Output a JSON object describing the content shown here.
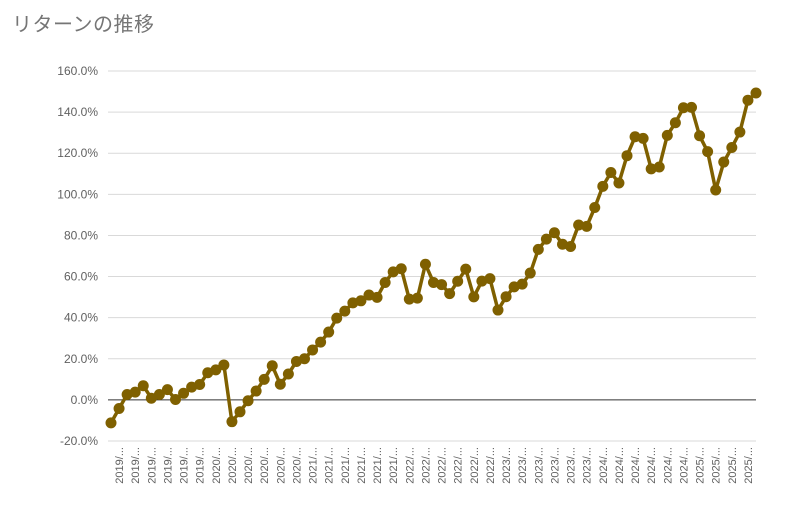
{
  "chart_data": {
    "type": "line",
    "title": "リターンの推移",
    "xlabel": "",
    "ylabel": "",
    "ylim": [
      -20,
      160
    ],
    "y_ticks": [
      "160.0%",
      "140.0%",
      "120.0%",
      "100.0%",
      "80.0%",
      "60.0%",
      "40.0%",
      "20.0%",
      "0.0%",
      "-20.0%"
    ],
    "x_tick_labels": [
      "2019/...",
      "2019/...",
      "2019/...",
      "2019/...",
      "2019/...",
      "2019/...",
      "2020/...",
      "2020/...",
      "2020/...",
      "2020/...",
      "2020/...",
      "2020/...",
      "2021/...",
      "2021/...",
      "2021/...",
      "2021/...",
      "2021/...",
      "2021/...",
      "2022/...",
      "2022/...",
      "2022/...",
      "2022/...",
      "2022/...",
      "2022/...",
      "2023/...",
      "2023/...",
      "2023/...",
      "2023/...",
      "2023/...",
      "2023/...",
      "2024/...",
      "2024/...",
      "2024/...",
      "2024/...",
      "2024/...",
      "2024/...",
      "2025/...",
      "2025/...",
      "2025/...",
      "2025/..."
    ],
    "grid": true,
    "legend": "none",
    "series": [
      {
        "color": "#7f6000",
        "values": [
          -11.2,
          -4.2,
          2.6,
          3.8,
          6.9,
          0.8,
          2.6,
          5.0,
          0.2,
          3.2,
          6.2,
          7.5,
          13.2,
          14.6,
          17.0,
          -10.6,
          -5.8,
          -0.4,
          4.3,
          10.0,
          16.6,
          7.6,
          12.6,
          18.7,
          20.0,
          24.3,
          28.1,
          33.0,
          39.8,
          43.2,
          47.2,
          48.2,
          51.0,
          49.9,
          57.1,
          62.3,
          63.8,
          49.0,
          49.5,
          66.0,
          57.1,
          56.1,
          51.7,
          57.7,
          63.6,
          50.1,
          57.8,
          59.0,
          43.7,
          50.2,
          55.0,
          56.3,
          61.7,
          73.2,
          78.2,
          81.3,
          75.7,
          74.6,
          85.1,
          84.4,
          93.6,
          103.9,
          110.6,
          105.5,
          118.8,
          128.0,
          127.2,
          112.4,
          113.3,
          128.7,
          134.8,
          142.1,
          142.3,
          128.5,
          120.8,
          102.1,
          115.7,
          122.8,
          130.3,
          145.8,
          149.3
        ]
      }
    ]
  }
}
